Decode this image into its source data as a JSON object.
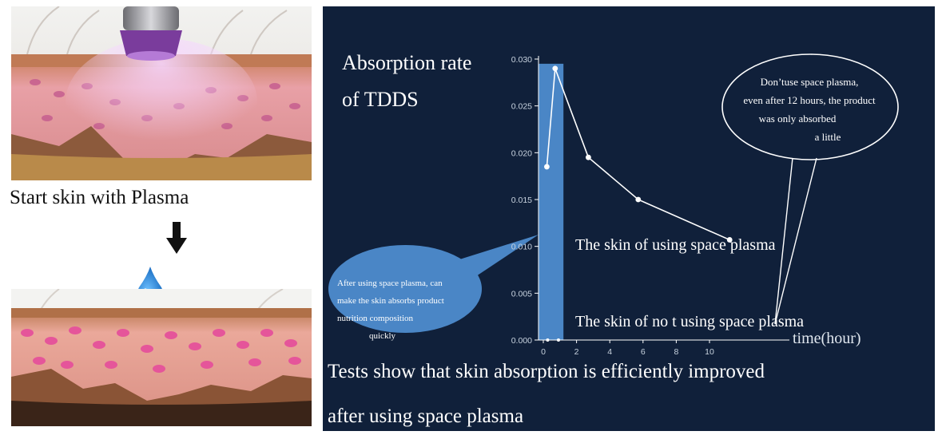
{
  "left": {
    "caption": "Start skin with Plasma"
  },
  "colors": {
    "panel_bg": "#10203a",
    "bar_fill": "#4a86c6",
    "line": "#ffffff",
    "bubble_fill": "#4a86c6"
  },
  "icons": [
    "down-arrow-icon",
    "water-drop-icon",
    "plasma-device-icon"
  ],
  "chart": {
    "title_lines": [
      "Absorption rate",
      "of TDDS"
    ],
    "xlabel": "time(hour)",
    "series_label_plasma": "The skin of using space plasma",
    "series_label_none": "The skin of no t using space plasma",
    "bubble_left_lines": [
      "After using space plasma, can",
      "make the skin absorbs product",
      "nutrition composition",
      "quickly"
    ],
    "bubble_right_lines": [
      "Don’tuse space plasma,",
      "even after 12 hours, the product",
      "was only absorbed",
      "a little"
    ],
    "footer_lines": [
      "Tests show that skin absorption is efficiently improved",
      "after using space plasma"
    ]
  },
  "chart_data": {
    "type": "line",
    "title": "Absorption rate of TDDS",
    "xlabel": "time(hour)",
    "ylabel": "",
    "xlim": [
      0,
      12
    ],
    "ylim": [
      0,
      0.03
    ],
    "x_ticks": [
      "0",
      "2",
      "4",
      "6",
      "8",
      "10"
    ],
    "y_ticks": [
      "0.000",
      "0.005",
      "0.010",
      "0.015",
      "0.020",
      "0.025",
      "0.030"
    ],
    "series": [
      {
        "name": "The skin of using space plasma",
        "x": [
          0.5,
          1,
          3,
          6,
          11.5
        ],
        "y": [
          0.0185,
          0.029,
          0.0195,
          0.015,
          0.0107
        ]
      }
    ],
    "band": {
      "x": [
        0,
        1.5
      ],
      "y": [
        0,
        0.0295
      ]
    },
    "grid": false
  }
}
